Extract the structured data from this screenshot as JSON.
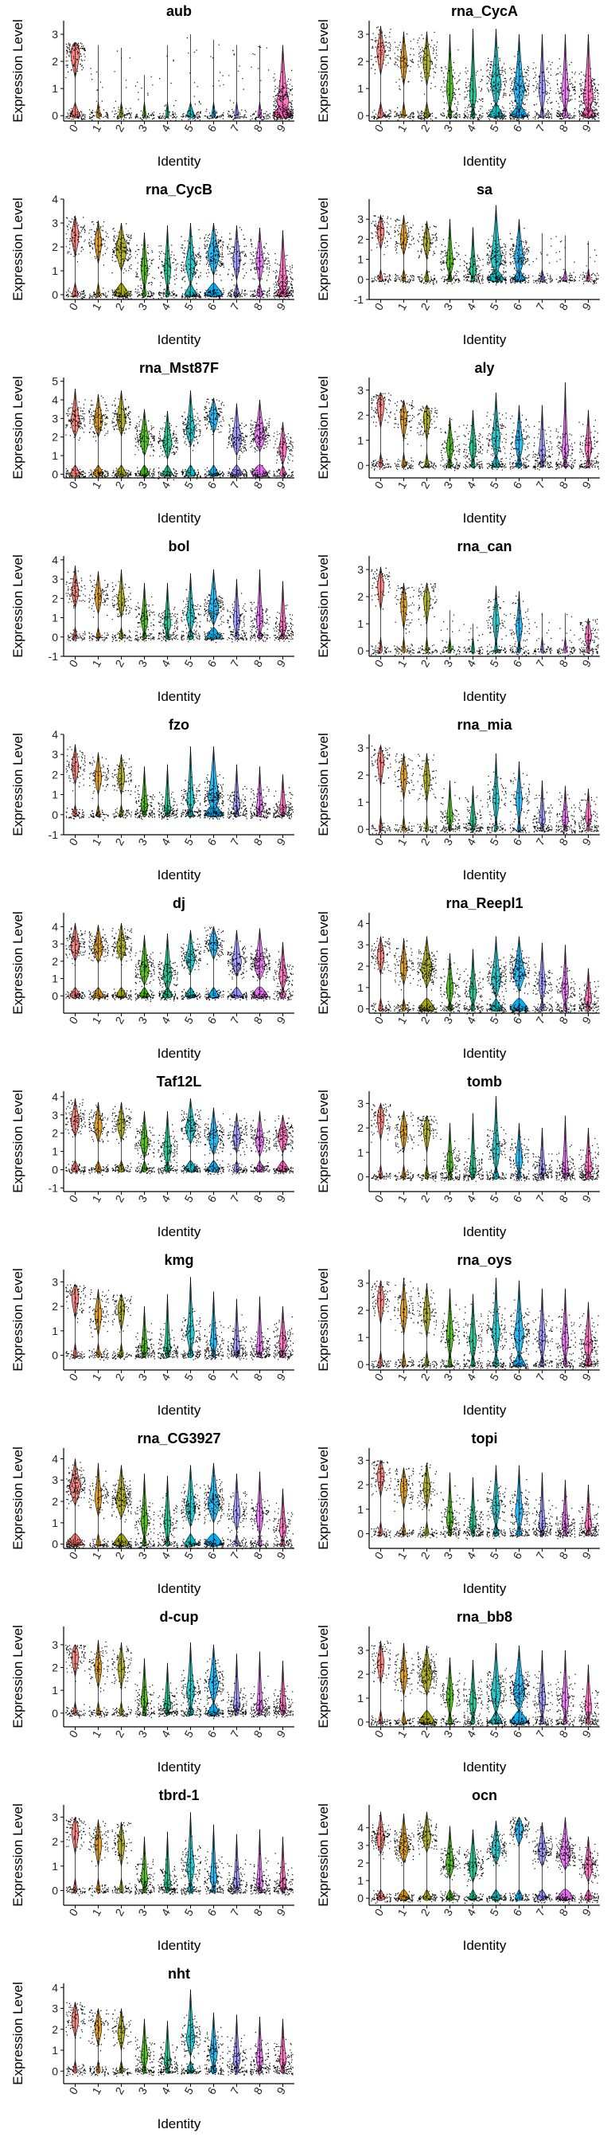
{
  "chart_data": {
    "type": "violin",
    "layout": {
      "rows": 12,
      "cols": 2
    },
    "xlabel": "Identity",
    "ylabel": "Expression Level",
    "categories": [
      "0",
      "1",
      "2",
      "3",
      "4",
      "5",
      "6",
      "7",
      "8",
      "9"
    ],
    "colors": [
      "#F8766D",
      "#D89000",
      "#A3A500",
      "#39B600",
      "#00BF7D",
      "#00BFC4",
      "#00B0F6",
      "#9590FF",
      "#E76BF3",
      "#FF62BC"
    ],
    "panels": [
      {
        "title": "aub",
        "ylim": [
          -0.2,
          3.5
        ],
        "yticks": [
          0,
          1,
          2,
          3
        ],
        "medians": [
          2.4,
          0.1,
          0.1,
          0,
          0,
          0.2,
          0,
          0,
          0,
          0.6
        ],
        "maxs": [
          2.7,
          2.6,
          2.5,
          1.5,
          2.6,
          3.0,
          2.8,
          2.6,
          2.6,
          2.6
        ],
        "fill": [
          0.5,
          0.2,
          0.2,
          0.1,
          0.1,
          0.4,
          0.2,
          0.2,
          0.2,
          1.0
        ]
      },
      {
        "title": "rna_CycA",
        "ylim": [
          -0.2,
          3.5
        ],
        "yticks": [
          0,
          1,
          2,
          3
        ],
        "medians": [
          2.5,
          2.1,
          2.1,
          1.1,
          0.9,
          1.3,
          1.1,
          1.1,
          1.0,
          0.8
        ],
        "maxs": [
          3.3,
          3.1,
          3.1,
          3.0,
          3.2,
          3.2,
          3.0,
          3.0,
          3.0,
          3.0
        ],
        "fill": [
          0.3,
          0.2,
          0.3,
          0.2,
          0.2,
          0.7,
          0.8,
          0.2,
          0.3,
          0.7
        ]
      },
      {
        "title": "rna_CycB",
        "ylim": [
          -0.2,
          4.0
        ],
        "yticks": [
          0,
          1,
          2,
          3,
          4
        ],
        "medians": [
          2.6,
          2.3,
          2.0,
          1.2,
          1.2,
          1.4,
          1.8,
          1.6,
          1.5,
          0.6
        ],
        "maxs": [
          3.3,
          3.1,
          3.0,
          2.6,
          2.9,
          3.0,
          3.0,
          2.9,
          2.8,
          2.7
        ],
        "fill": [
          0.3,
          0.2,
          0.8,
          0.2,
          0.2,
          0.6,
          0.9,
          0.3,
          0.3,
          0.6
        ]
      },
      {
        "title": "sa",
        "ylim": [
          -1.0,
          4.0
        ],
        "yticks": [
          -1,
          0,
          1,
          2,
          3
        ],
        "medians": [
          2.5,
          2.2,
          2.0,
          1.0,
          0.5,
          1.2,
          1.2,
          0.2,
          0.1,
          0.1
        ],
        "maxs": [
          3.2,
          3.2,
          2.9,
          3.0,
          2.6,
          3.7,
          3.0,
          2.3,
          2.2,
          1.9
        ],
        "fill": [
          0.2,
          0.2,
          0.2,
          0.2,
          0.2,
          0.8,
          0.6,
          0.2,
          0.2,
          0.2
        ]
      },
      {
        "title": "rna_Mst87F",
        "ylim": [
          -0.2,
          5.2
        ],
        "yticks": [
          0,
          1,
          2,
          3,
          4,
          5
        ],
        "medians": [
          3.0,
          3.0,
          3.1,
          2.0,
          1.8,
          2.5,
          3.2,
          2.0,
          2.2,
          1.5
        ],
        "maxs": [
          4.6,
          4.3,
          4.5,
          3.5,
          3.4,
          4.5,
          4.1,
          3.8,
          4.0,
          2.8
        ],
        "fill": [
          0.5,
          0.5,
          0.5,
          0.5,
          0.5,
          0.5,
          0.5,
          0.6,
          0.8,
          0.3
        ]
      },
      {
        "title": "aly",
        "ylim": [
          -0.5,
          3.5
        ],
        "yticks": [
          0,
          1,
          2,
          3
        ],
        "medians": [
          2.5,
          2.0,
          2.0,
          0.8,
          0.8,
          1.2,
          1.0,
          0.6,
          0.7,
          0.8
        ],
        "maxs": [
          2.9,
          2.6,
          2.4,
          1.9,
          2.2,
          2.9,
          2.4,
          2.4,
          3.3,
          2.2
        ],
        "fill": [
          0.2,
          0.2,
          0.2,
          0.2,
          0.2,
          0.4,
          0.3,
          0.2,
          0.2,
          0.2
        ]
      },
      {
        "title": "bol",
        "ylim": [
          -1.0,
          4.2
        ],
        "yticks": [
          -1,
          0,
          1,
          2,
          3,
          4
        ],
        "medians": [
          2.5,
          2.2,
          2.0,
          1.0,
          0.8,
          1.2,
          1.6,
          1.0,
          1.0,
          0.6
        ],
        "maxs": [
          3.7,
          3.4,
          3.5,
          2.8,
          2.8,
          3.3,
          3.5,
          3.0,
          3.5,
          2.9
        ],
        "fill": [
          0.2,
          0.2,
          0.2,
          0.2,
          0.2,
          0.3,
          0.7,
          0.2,
          0.2,
          0.2
        ]
      },
      {
        "title": "rna_can",
        "ylim": [
          -0.2,
          3.5
        ],
        "yticks": [
          0,
          1,
          2,
          3
        ],
        "medians": [
          2.5,
          1.8,
          2.0,
          0,
          0,
          1.2,
          1.0,
          0,
          0,
          0.6
        ],
        "maxs": [
          3.1,
          2.5,
          2.5,
          1.5,
          1.0,
          2.4,
          2.2,
          1.4,
          1.4,
          1.2
        ],
        "fill": [
          0.1,
          0.1,
          0.1,
          0.1,
          0.1,
          0.1,
          0.1,
          0.1,
          0.1,
          0.1
        ]
      },
      {
        "title": "fzo",
        "ylim": [
          -1.0,
          4.0
        ],
        "yticks": [
          -1,
          0,
          1,
          2,
          3,
          4
        ],
        "medians": [
          2.5,
          2.0,
          2.0,
          0.5,
          0.3,
          0.8,
          1.0,
          0.5,
          0.4,
          0.3
        ],
        "maxs": [
          3.5,
          3.1,
          3.0,
          2.4,
          2.5,
          3.4,
          3.4,
          2.5,
          2.4,
          2.0
        ],
        "fill": [
          0.2,
          0.2,
          0.2,
          0.2,
          0.2,
          0.3,
          0.9,
          0.2,
          0.2,
          0.2
        ]
      },
      {
        "title": "rna_mia",
        "ylim": [
          -0.2,
          3.5
        ],
        "yticks": [
          0,
          1,
          2,
          3
        ],
        "medians": [
          2.6,
          2.1,
          2.0,
          0.5,
          0.3,
          1.2,
          1.2,
          0.4,
          0.4,
          0.5
        ],
        "maxs": [
          3.1,
          2.8,
          2.8,
          1.8,
          1.6,
          2.8,
          2.5,
          1.8,
          1.6,
          1.5
        ],
        "fill": [
          0.1,
          0.1,
          0.1,
          0.1,
          0.1,
          0.1,
          0.1,
          0.1,
          0.1,
          0.1
        ]
      },
      {
        "title": "dj",
        "ylim": [
          -1.0,
          4.8
        ],
        "yticks": [
          0,
          1,
          2,
          3,
          4
        ],
        "medians": [
          3.0,
          2.9,
          3.0,
          1.6,
          1.3,
          2.3,
          3.1,
          2.1,
          1.9,
          1.3
        ],
        "maxs": [
          4.2,
          4.1,
          4.2,
          3.5,
          3.6,
          3.8,
          4.0,
          3.8,
          3.9,
          3.1
        ],
        "fill": [
          0.5,
          0.5,
          0.5,
          0.5,
          0.5,
          0.5,
          0.5,
          0.6,
          0.8,
          0.3
        ]
      },
      {
        "title": "rna_Reepl1",
        "ylim": [
          -0.2,
          4.5
        ],
        "yticks": [
          0,
          1,
          2,
          3,
          4
        ],
        "medians": [
          2.6,
          2.1,
          2.0,
          1.1,
          0.9,
          1.5,
          1.8,
          1.3,
          1.0,
          0.5
        ],
        "maxs": [
          3.4,
          3.3,
          3.4,
          2.6,
          2.8,
          3.4,
          3.4,
          3.1,
          3.0,
          1.9
        ],
        "fill": [
          0.2,
          0.2,
          0.8,
          0.2,
          0.2,
          0.6,
          0.9,
          0.2,
          0.2,
          0.2
        ]
      },
      {
        "title": "Taf12L",
        "ylim": [
          -1.2,
          4.3
        ],
        "yticks": [
          -1,
          0,
          1,
          2,
          3,
          4
        ],
        "medians": [
          2.8,
          2.5,
          2.6,
          1.6,
          1.2,
          2.4,
          1.8,
          1.9,
          1.7,
          1.9
        ],
        "maxs": [
          3.9,
          3.7,
          3.7,
          3.2,
          3.2,
          3.9,
          3.4,
          3.1,
          3.2,
          3.0
        ],
        "fill": [
          0.4,
          0.3,
          0.3,
          0.3,
          0.3,
          0.6,
          0.6,
          0.3,
          0.4,
          0.6
        ]
      },
      {
        "title": "tomb",
        "ylim": [
          -0.6,
          3.5
        ],
        "yticks": [
          0,
          1,
          2,
          3
        ],
        "medians": [
          2.5,
          2.0,
          2.0,
          0.5,
          0.3,
          1.2,
          0.8,
          0.3,
          0.3,
          0.4
        ],
        "maxs": [
          3.0,
          2.7,
          2.5,
          2.2,
          2.6,
          3.3,
          2.2,
          2.0,
          2.5,
          2.0
        ],
        "fill": [
          0.2,
          0.2,
          0.2,
          0.2,
          0.2,
          0.3,
          0.2,
          0.2,
          0.2,
          0.3
        ]
      },
      {
        "title": "kmg",
        "ylim": [
          -0.6,
          3.5
        ],
        "yticks": [
          0,
          1,
          2,
          3
        ],
        "medians": [
          2.5,
          1.8,
          2.0,
          0.3,
          0.3,
          1.0,
          0.6,
          0.3,
          0.3,
          0.6
        ],
        "maxs": [
          2.9,
          2.7,
          2.5,
          2.0,
          2.5,
          3.2,
          2.6,
          2.3,
          2.4,
          2.0
        ],
        "fill": [
          0.2,
          0.2,
          0.2,
          0.2,
          0.2,
          0.3,
          0.2,
          0.2,
          0.2,
          0.3
        ]
      },
      {
        "title": "rna_oys",
        "ylim": [
          -0.2,
          3.5
        ],
        "yticks": [
          0,
          1,
          2,
          3
        ],
        "medians": [
          2.5,
          2.1,
          2.0,
          1.2,
          1.0,
          1.3,
          1.2,
          1.1,
          1.0,
          0.8
        ],
        "maxs": [
          3.1,
          3.2,
          3.0,
          2.8,
          2.6,
          3.2,
          3.1,
          2.8,
          2.8,
          2.3
        ],
        "fill": [
          0.2,
          0.2,
          0.2,
          0.2,
          0.2,
          0.3,
          0.6,
          0.2,
          0.2,
          0.4
        ]
      },
      {
        "title": "rna_CG3927",
        "ylim": [
          -0.2,
          4.5
        ],
        "yticks": [
          0,
          1,
          2,
          3,
          4
        ],
        "medians": [
          2.8,
          2.3,
          2.2,
          1.2,
          1.1,
          1.8,
          2.0,
          1.6,
          1.4,
          0.8
        ],
        "maxs": [
          4.0,
          3.8,
          3.7,
          3.3,
          3.2,
          3.7,
          3.8,
          3.3,
          3.4,
          2.6
        ],
        "fill": [
          0.8,
          0.2,
          0.8,
          0.2,
          0.2,
          0.6,
          0.9,
          0.2,
          0.2,
          0.2
        ]
      },
      {
        "title": "topi",
        "ylim": [
          -0.6,
          3.5
        ],
        "yticks": [
          0,
          1,
          2,
          3
        ],
        "medians": [
          2.5,
          2.0,
          2.0,
          0.6,
          0.4,
          1.2,
          1.0,
          0.4,
          0.4,
          0.4
        ],
        "maxs": [
          3.0,
          2.7,
          2.9,
          2.5,
          2.3,
          2.8,
          2.8,
          2.5,
          2.2,
          2.0
        ],
        "fill": [
          0.2,
          0.2,
          0.2,
          0.2,
          0.2,
          0.3,
          0.3,
          0.2,
          0.2,
          0.2
        ]
      },
      {
        "title": "d-cup",
        "ylim": [
          -0.6,
          3.8
        ],
        "yticks": [
          0,
          1,
          2,
          3
        ],
        "medians": [
          2.6,
          2.1,
          2.1,
          0.6,
          0.4,
          1.1,
          1.4,
          0.4,
          0.3,
          0.3
        ],
        "maxs": [
          3.0,
          3.2,
          3.1,
          2.4,
          2.2,
          3.1,
          3.0,
          2.6,
          2.7,
          2.3
        ],
        "fill": [
          0.2,
          0.2,
          0.2,
          0.2,
          0.2,
          0.3,
          0.6,
          0.2,
          0.2,
          0.2
        ]
      },
      {
        "title": "rna_bb8",
        "ylim": [
          -0.2,
          4.0
        ],
        "yticks": [
          0,
          1,
          2,
          3
        ],
        "medians": [
          2.6,
          2.1,
          2.1,
          1.2,
          0.9,
          1.3,
          1.4,
          1.1,
          1.0,
          0.7
        ],
        "maxs": [
          3.4,
          3.3,
          3.2,
          2.7,
          2.6,
          3.3,
          3.2,
          3.0,
          3.0,
          2.4
        ],
        "fill": [
          0.2,
          0.2,
          0.8,
          0.2,
          0.2,
          0.6,
          0.9,
          0.2,
          0.2,
          0.2
        ]
      },
      {
        "title": "tbrd-1",
        "ylim": [
          -0.6,
          3.5
        ],
        "yticks": [
          0,
          1,
          2,
          3
        ],
        "medians": [
          2.5,
          2.0,
          2.0,
          0.5,
          0.3,
          1.1,
          0.6,
          0.3,
          0.3,
          0.3
        ],
        "maxs": [
          3.0,
          2.9,
          2.8,
          2.2,
          2.4,
          3.2,
          2.7,
          2.3,
          2.5,
          2.2
        ],
        "fill": [
          0.2,
          0.2,
          0.2,
          0.2,
          0.2,
          0.3,
          0.2,
          0.2,
          0.2,
          0.2
        ]
      },
      {
        "title": "ocn",
        "ylim": [
          -0.4,
          5.3
        ],
        "yticks": [
          0,
          1,
          2,
          3,
          4
        ],
        "medians": [
          3.5,
          3.0,
          3.6,
          2.1,
          1.9,
          2.9,
          4.0,
          2.8,
          2.6,
          1.9
        ],
        "maxs": [
          4.9,
          4.8,
          4.9,
          4.1,
          3.9,
          4.4,
          4.6,
          4.3,
          4.6,
          3.5
        ],
        "fill": [
          0.4,
          0.6,
          0.4,
          0.4,
          0.4,
          0.5,
          0.4,
          0.5,
          0.8,
          0.4
        ]
      },
      {
        "title": "nht",
        "ylim": [
          -0.6,
          4.2
        ],
        "yticks": [
          0,
          1,
          2,
          3,
          4
        ],
        "medians": [
          2.6,
          2.2,
          2.0,
          0.8,
          0.5,
          1.7,
          1.0,
          0.6,
          0.6,
          0.6
        ],
        "maxs": [
          3.3,
          3.0,
          3.0,
          2.5,
          2.4,
          3.9,
          2.8,
          2.7,
          2.6,
          2.5
        ],
        "fill": [
          0.2,
          0.2,
          0.2,
          0.2,
          0.2,
          0.4,
          0.3,
          0.2,
          0.2,
          0.2
        ]
      }
    ]
  }
}
